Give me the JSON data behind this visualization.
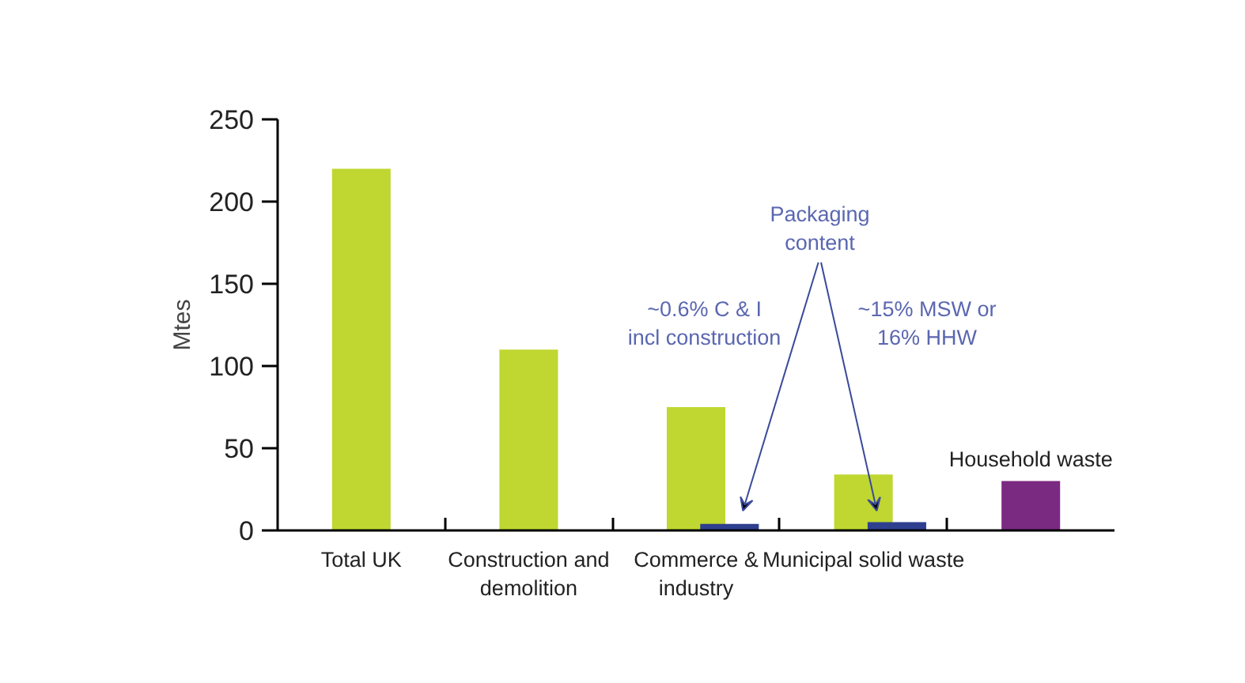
{
  "chart_data": {
    "type": "bar",
    "ylabel": "Mtes",
    "categories": [
      "Total UK",
      "Construction and demolition",
      "Commerce & industry",
      "Municipal solid waste",
      null
    ],
    "series": [
      {
        "color": "#bfd730",
        "values": [
          220,
          110,
          75,
          34,
          null
        ]
      },
      {
        "color": "#2e3f8f",
        "values": [
          null,
          null,
          4,
          5,
          null
        ]
      },
      {
        "name": "Household waste",
        "color": "#7b2a82",
        "values": [
          null,
          null,
          null,
          null,
          30
        ]
      }
    ],
    "annotations": [
      "Packaging content",
      "~0.6% C & I incl construction",
      "~15% MSW or 16% HHW"
    ],
    "ylim": [
      0,
      250
    ],
    "yticks": [
      0,
      50,
      100,
      150,
      200,
      250
    ],
    "grid": false
  }
}
